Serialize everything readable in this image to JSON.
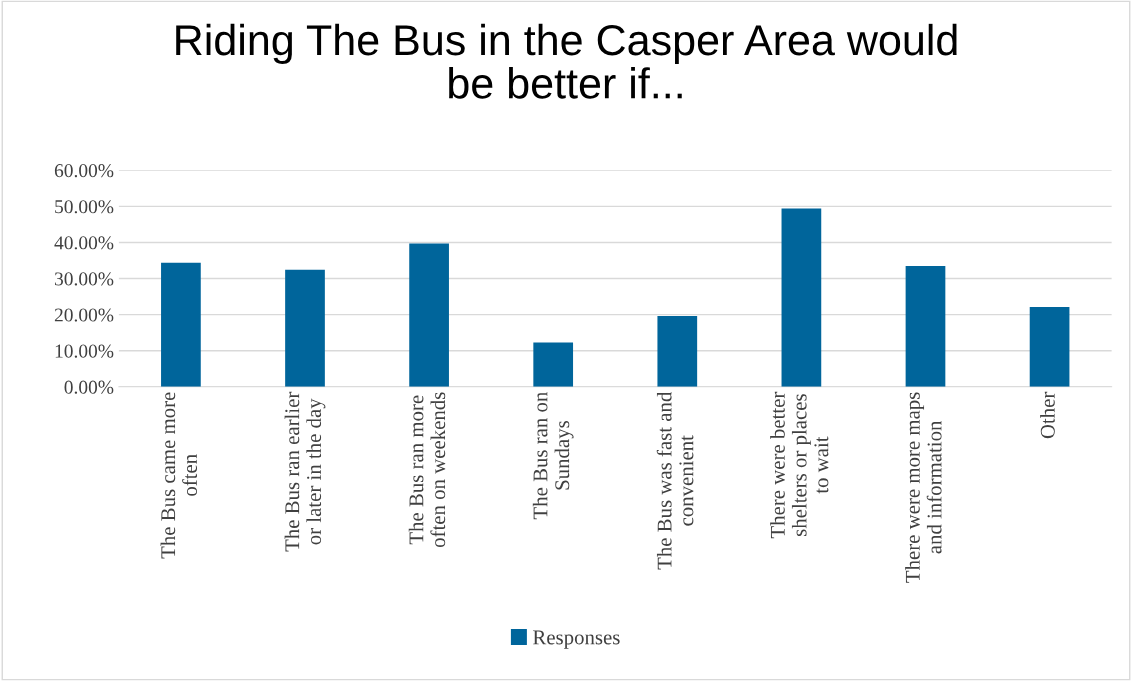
{
  "chart_data": {
    "type": "bar",
    "title": "Riding The Bus in the Casper Area would be better if...",
    "categories": [
      "The Bus came more often",
      "The Bus ran earlier or later in the day",
      "The Bus ran more often on weekends",
      "The Bus ran on Sundays",
      "The Bus was fast and convenient",
      "There were better shelters or places to wait",
      "There were more maps and information",
      "Other"
    ],
    "series": [
      {
        "name": "Responses",
        "color": "#00659b",
        "values": [
          34.4,
          32.4,
          39.7,
          12.3,
          19.6,
          49.4,
          33.5,
          22.1
        ]
      }
    ],
    "ylim": [
      0,
      60
    ],
    "yticks": [
      {
        "value": 0,
        "label": "0.00%"
      },
      {
        "value": 10,
        "label": "10.00%"
      },
      {
        "value": 20,
        "label": "20.00%"
      },
      {
        "value": 30,
        "label": "30.00%"
      },
      {
        "value": 40,
        "label": "40.00%"
      },
      {
        "value": 50,
        "label": "50.00%"
      },
      {
        "value": 60,
        "label": "60.00%"
      }
    ],
    "grid": "y",
    "legend": "bottom"
  }
}
